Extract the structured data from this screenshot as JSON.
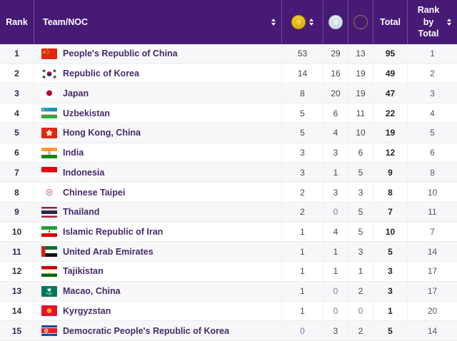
{
  "table": {
    "header": {
      "rank": "Rank",
      "team": "Team/NOC",
      "gold_icon": "gold-medal-icon",
      "silver_icon": "silver-medal-icon",
      "bronze_icon": "bronze-medal-icon",
      "total": "Total",
      "rank_by_total": "Rank by Total",
      "rank_by_total_lines": "Rank by Total"
    },
    "rows": [
      {
        "rank": 1,
        "team": "People's Republic of China",
        "flag": "CHN",
        "gold": 53,
        "silver": 29,
        "bronze": 13,
        "total": 95,
        "rank_by_total": 1
      },
      {
        "rank": 2,
        "team": "Republic of Korea",
        "flag": "KOR",
        "gold": 14,
        "silver": 16,
        "bronze": 19,
        "total": 49,
        "rank_by_total": 2
      },
      {
        "rank": 3,
        "team": "Japan",
        "flag": "JPN",
        "gold": 8,
        "silver": 20,
        "bronze": 19,
        "total": 47,
        "rank_by_total": 3
      },
      {
        "rank": 4,
        "team": "Uzbekistan",
        "flag": "UZB",
        "gold": 5,
        "silver": 6,
        "bronze": 11,
        "total": 22,
        "rank_by_total": 4
      },
      {
        "rank": 5,
        "team": "Hong Kong, China",
        "flag": "HKG",
        "gold": 5,
        "silver": 4,
        "bronze": 10,
        "total": 19,
        "rank_by_total": 5
      },
      {
        "rank": 6,
        "team": "India",
        "flag": "IND",
        "gold": 3,
        "silver": 3,
        "bronze": 6,
        "total": 12,
        "rank_by_total": 6
      },
      {
        "rank": 7,
        "team": "Indonesia",
        "flag": "INA",
        "gold": 3,
        "silver": 1,
        "bronze": 5,
        "total": 9,
        "rank_by_total": 8
      },
      {
        "rank": 8,
        "team": "Chinese Taipei",
        "flag": "TPE",
        "gold": 2,
        "silver": 3,
        "bronze": 3,
        "total": 8,
        "rank_by_total": 10
      },
      {
        "rank": 9,
        "team": "Thailand",
        "flag": "THA",
        "gold": 2,
        "silver": 0,
        "bronze": 5,
        "total": 7,
        "rank_by_total": 11
      },
      {
        "rank": 10,
        "team": "Islamic Republic of Iran",
        "flag": "IRI",
        "gold": 1,
        "silver": 4,
        "bronze": 5,
        "total": 10,
        "rank_by_total": 7
      },
      {
        "rank": 11,
        "team": "United Arab Emirates",
        "flag": "UAE",
        "gold": 1,
        "silver": 1,
        "bronze": 3,
        "total": 5,
        "rank_by_total": 14
      },
      {
        "rank": 12,
        "team": "Tajikistan",
        "flag": "TJK",
        "gold": 1,
        "silver": 1,
        "bronze": 1,
        "total": 3,
        "rank_by_total": 17
      },
      {
        "rank": 13,
        "team": "Macao, China",
        "flag": "MAC",
        "gold": 1,
        "silver": 0,
        "bronze": 2,
        "total": 3,
        "rank_by_total": 17
      },
      {
        "rank": 14,
        "team": "Kyrgyzstan",
        "flag": "KGZ",
        "gold": 1,
        "silver": 0,
        "bronze": 0,
        "total": 1,
        "rank_by_total": 20
      },
      {
        "rank": 15,
        "team": "Democratic People's Republic of Korea",
        "flag": "PRK",
        "gold": 0,
        "silver": 3,
        "bronze": 2,
        "total": 5,
        "rank_by_total": 14
      }
    ]
  },
  "colors": {
    "header_bg": "#471a75",
    "header_text": "#ffffff",
    "team_link": "#472a6b",
    "rank_text": "#33294a",
    "number_text": "#474747",
    "zero_text": "#8674a3",
    "total_text": "#222222",
    "rank_by_total_text": "#5d5071",
    "row_stripe": "#f7f7f9",
    "row_border": "#ededf0",
    "medal_gold": "#e6ba12",
    "medal_silver": "#d4e2ec",
    "medal_bronze": "#bb9071"
  }
}
